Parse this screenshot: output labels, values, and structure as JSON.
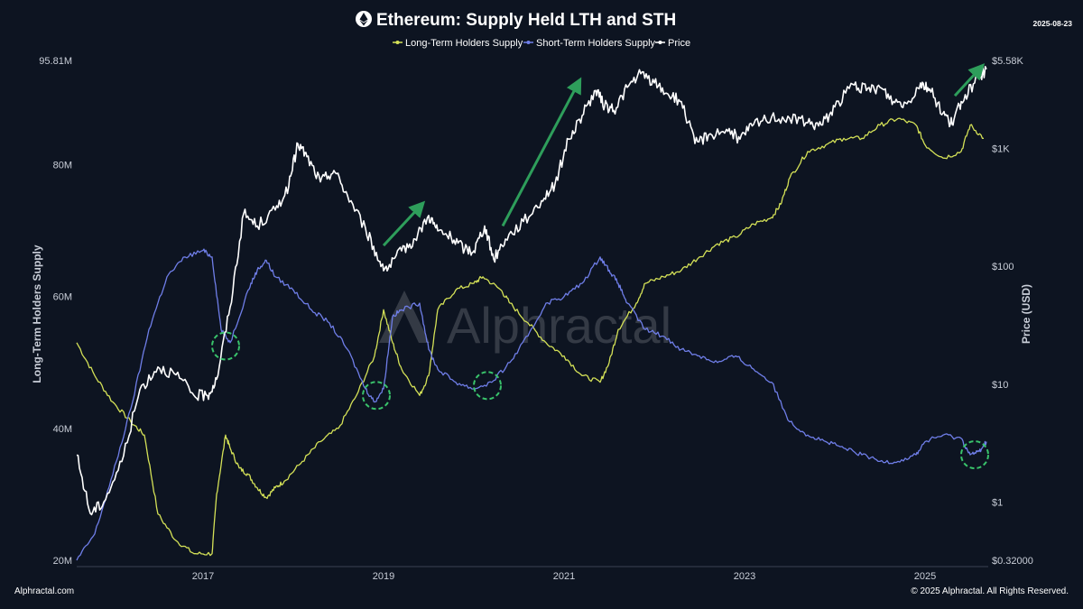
{
  "header": {
    "title": "Ethereum: Supply Held LTH and STH",
    "date": "2025-08-23"
  },
  "footer": {
    "left": "Alphractal.com",
    "right": "© 2025 Alphractal. All Rights Reserved."
  },
  "watermark": "Alphractal",
  "colors": {
    "background": "#0d1421",
    "lth": "#d4e157",
    "sth": "#6f7ee8",
    "price": "#ffffff",
    "arrow": "#2e9e5b",
    "circle": "#39c36b"
  },
  "chart_data": {
    "type": "line",
    "title": "Ethereum: Supply Held LTH and STH",
    "ylabel_left": "Long-Term Holders Supply",
    "ylabel_right": "Price (USD)",
    "xlim": [
      2015.6,
      2025.7
    ],
    "ylim_left": [
      20,
      95.81
    ],
    "ylim_right": [
      0.32,
      5580
    ],
    "right_scale": "log",
    "left_ticks": [
      "20M",
      "40M",
      "60M",
      "80M",
      "95.81M"
    ],
    "left_tick_values": [
      20,
      40,
      60,
      80,
      95.81
    ],
    "right_ticks": [
      "$0.32000",
      "$1",
      "$10",
      "$100",
      "$1K",
      "$5.58K"
    ],
    "right_tick_values": [
      0.32,
      1,
      10,
      100,
      1000,
      5580
    ],
    "x_ticks": [
      "2017",
      "2019",
      "2021",
      "2023",
      "2025"
    ],
    "x_tick_values": [
      2017,
      2019,
      2021,
      2023,
      2025
    ],
    "grid": false,
    "legend_position": "top-center",
    "series": [
      {
        "name": "Long-Term Holders Supply",
        "axis": "left",
        "points": [
          [
            2015.6,
            53
          ],
          [
            2015.8,
            48
          ],
          [
            2016.0,
            44
          ],
          [
            2016.2,
            41
          ],
          [
            2016.35,
            39
          ],
          [
            2016.5,
            27
          ],
          [
            2016.7,
            23
          ],
          [
            2016.9,
            21
          ],
          [
            2017.1,
            21
          ],
          [
            2017.15,
            30
          ],
          [
            2017.25,
            39
          ],
          [
            2017.3,
            37
          ],
          [
            2017.4,
            34
          ],
          [
            2017.5,
            33
          ],
          [
            2017.6,
            31
          ],
          [
            2017.7,
            29.5
          ],
          [
            2017.8,
            31
          ],
          [
            2017.9,
            32
          ],
          [
            2018.1,
            35
          ],
          [
            2018.3,
            38
          ],
          [
            2018.5,
            40
          ],
          [
            2018.7,
            45
          ],
          [
            2018.9,
            51
          ],
          [
            2019.0,
            58
          ],
          [
            2019.1,
            53
          ],
          [
            2019.2,
            49
          ],
          [
            2019.4,
            45
          ],
          [
            2019.5,
            48
          ],
          [
            2019.6,
            58
          ],
          [
            2019.8,
            61
          ],
          [
            2020.0,
            62
          ],
          [
            2020.1,
            63
          ],
          [
            2020.3,
            61
          ],
          [
            2020.4,
            59
          ],
          [
            2020.6,
            56
          ],
          [
            2020.8,
            53
          ],
          [
            2021.0,
            51
          ],
          [
            2021.2,
            48
          ],
          [
            2021.4,
            47
          ],
          [
            2021.5,
            50
          ],
          [
            2021.6,
            55
          ],
          [
            2021.8,
            59
          ],
          [
            2021.9,
            62
          ],
          [
            2022.1,
            63
          ],
          [
            2022.3,
            64
          ],
          [
            2022.5,
            66
          ],
          [
            2022.7,
            68
          ],
          [
            2022.9,
            69
          ],
          [
            2023.1,
            71
          ],
          [
            2023.3,
            72
          ],
          [
            2023.4,
            74
          ],
          [
            2023.5,
            78
          ],
          [
            2023.7,
            82
          ],
          [
            2023.9,
            83
          ],
          [
            2024.1,
            84
          ],
          [
            2024.3,
            84
          ],
          [
            2024.5,
            86
          ],
          [
            2024.7,
            87
          ],
          [
            2024.9,
            86
          ],
          [
            2025.0,
            83
          ],
          [
            2025.2,
            81
          ],
          [
            2025.4,
            82
          ],
          [
            2025.5,
            86
          ],
          [
            2025.65,
            84
          ]
        ]
      },
      {
        "name": "Short-Term Holders Supply",
        "axis": "left",
        "points": [
          [
            2015.6,
            20
          ],
          [
            2015.8,
            24
          ],
          [
            2016.0,
            33
          ],
          [
            2016.2,
            43
          ],
          [
            2016.4,
            55
          ],
          [
            2016.6,
            63
          ],
          [
            2016.8,
            66
          ],
          [
            2017.0,
            67
          ],
          [
            2017.1,
            66
          ],
          [
            2017.2,
            55
          ],
          [
            2017.3,
            53
          ],
          [
            2017.5,
            61
          ],
          [
            2017.6,
            64
          ],
          [
            2017.7,
            65.5
          ],
          [
            2017.8,
            63
          ],
          [
            2018.0,
            61
          ],
          [
            2018.2,
            58
          ],
          [
            2018.4,
            56
          ],
          [
            2018.6,
            52
          ],
          [
            2018.8,
            46
          ],
          [
            2018.9,
            44
          ],
          [
            2019.0,
            46
          ],
          [
            2019.1,
            57
          ],
          [
            2019.2,
            58
          ],
          [
            2019.4,
            59
          ],
          [
            2019.5,
            52
          ],
          [
            2019.6,
            49
          ],
          [
            2019.8,
            47
          ],
          [
            2020.0,
            46
          ],
          [
            2020.2,
            47
          ],
          [
            2020.4,
            50
          ],
          [
            2020.6,
            54
          ],
          [
            2020.8,
            59
          ],
          [
            2021.0,
            60
          ],
          [
            2021.2,
            62
          ],
          [
            2021.4,
            66
          ],
          [
            2021.5,
            64
          ],
          [
            2021.6,
            62
          ],
          [
            2021.7,
            59
          ],
          [
            2021.9,
            55
          ],
          [
            2022.1,
            54
          ],
          [
            2022.3,
            52
          ],
          [
            2022.5,
            51
          ],
          [
            2022.7,
            50
          ],
          [
            2022.9,
            51
          ],
          [
            2023.1,
            49
          ],
          [
            2023.3,
            47
          ],
          [
            2023.5,
            41
          ],
          [
            2023.7,
            39
          ],
          [
            2023.9,
            38
          ],
          [
            2024.1,
            37
          ],
          [
            2024.3,
            36
          ],
          [
            2024.5,
            35
          ],
          [
            2024.7,
            35
          ],
          [
            2024.9,
            36
          ],
          [
            2025.0,
            38
          ],
          [
            2025.2,
            39
          ],
          [
            2025.4,
            38.5
          ],
          [
            2025.5,
            36
          ],
          [
            2025.6,
            36.5
          ],
          [
            2025.68,
            38
          ]
        ]
      },
      {
        "name": "Price",
        "axis": "right",
        "points": [
          [
            2015.6,
            2.5
          ],
          [
            2015.75,
            0.8
          ],
          [
            2015.9,
            1.0
          ],
          [
            2016.1,
            2.2
          ],
          [
            2016.3,
            9
          ],
          [
            2016.5,
            14
          ],
          [
            2016.7,
            12
          ],
          [
            2016.9,
            8
          ],
          [
            2017.05,
            8
          ],
          [
            2017.15,
            11
          ],
          [
            2017.3,
            45
          ],
          [
            2017.45,
            280
          ],
          [
            2017.6,
            220
          ],
          [
            2017.8,
            300
          ],
          [
            2017.95,
            480
          ],
          [
            2018.05,
            1100
          ],
          [
            2018.15,
            850
          ],
          [
            2018.3,
            520
          ],
          [
            2018.45,
            650
          ],
          [
            2018.6,
            400
          ],
          [
            2018.8,
            210
          ],
          [
            2018.95,
            110
          ],
          [
            2019.05,
            95
          ],
          [
            2019.2,
            135
          ],
          [
            2019.35,
            170
          ],
          [
            2019.5,
            270
          ],
          [
            2019.6,
            200
          ],
          [
            2019.75,
            175
          ],
          [
            2019.9,
            140
          ],
          [
            2020.0,
            135
          ],
          [
            2020.12,
            220
          ],
          [
            2020.22,
            115
          ],
          [
            2020.35,
            170
          ],
          [
            2020.55,
            240
          ],
          [
            2020.75,
            360
          ],
          [
            2020.9,
            500
          ],
          [
            2021.05,
            1200
          ],
          [
            2021.2,
            1900
          ],
          [
            2021.35,
            3100
          ],
          [
            2021.45,
            2300
          ],
          [
            2021.55,
            2100
          ],
          [
            2021.7,
            3300
          ],
          [
            2021.85,
            4300
          ],
          [
            2022.0,
            3600
          ],
          [
            2022.15,
            2900
          ],
          [
            2022.3,
            2500
          ],
          [
            2022.45,
            1100
          ],
          [
            2022.6,
            1300
          ],
          [
            2022.8,
            1450
          ],
          [
            2022.95,
            1200
          ],
          [
            2023.1,
            1600
          ],
          [
            2023.3,
            1850
          ],
          [
            2023.5,
            1800
          ],
          [
            2023.7,
            1650
          ],
          [
            2023.85,
            1580
          ],
          [
            2024.0,
            2250
          ],
          [
            2024.2,
            3500
          ],
          [
            2024.35,
            3100
          ],
          [
            2024.5,
            3300
          ],
          [
            2024.65,
            2500
          ],
          [
            2024.8,
            2400
          ],
          [
            2024.95,
            3600
          ],
          [
            2025.05,
            3200
          ],
          [
            2025.2,
            2000
          ],
          [
            2025.3,
            1600
          ],
          [
            2025.4,
            2500
          ],
          [
            2025.55,
            3600
          ],
          [
            2025.68,
            4700
          ]
        ]
      }
    ],
    "annotations": {
      "arrows": [
        {
          "from": [
            2019.0,
            150
          ],
          "to": [
            2019.4,
            320
          ]
        },
        {
          "from": [
            2020.32,
            220
          ],
          "to": [
            2021.15,
            3500
          ]
        },
        {
          "from": [
            2025.33,
            2800
          ],
          "to": [
            2025.6,
            4700
          ]
        }
      ],
      "circles": [
        {
          "x": 2017.25,
          "y": 52.5
        },
        {
          "x": 2018.92,
          "y": 45
        },
        {
          "x": 2020.15,
          "y": 46.5
        },
        {
          "x": 2025.55,
          "y": 36
        }
      ]
    }
  }
}
